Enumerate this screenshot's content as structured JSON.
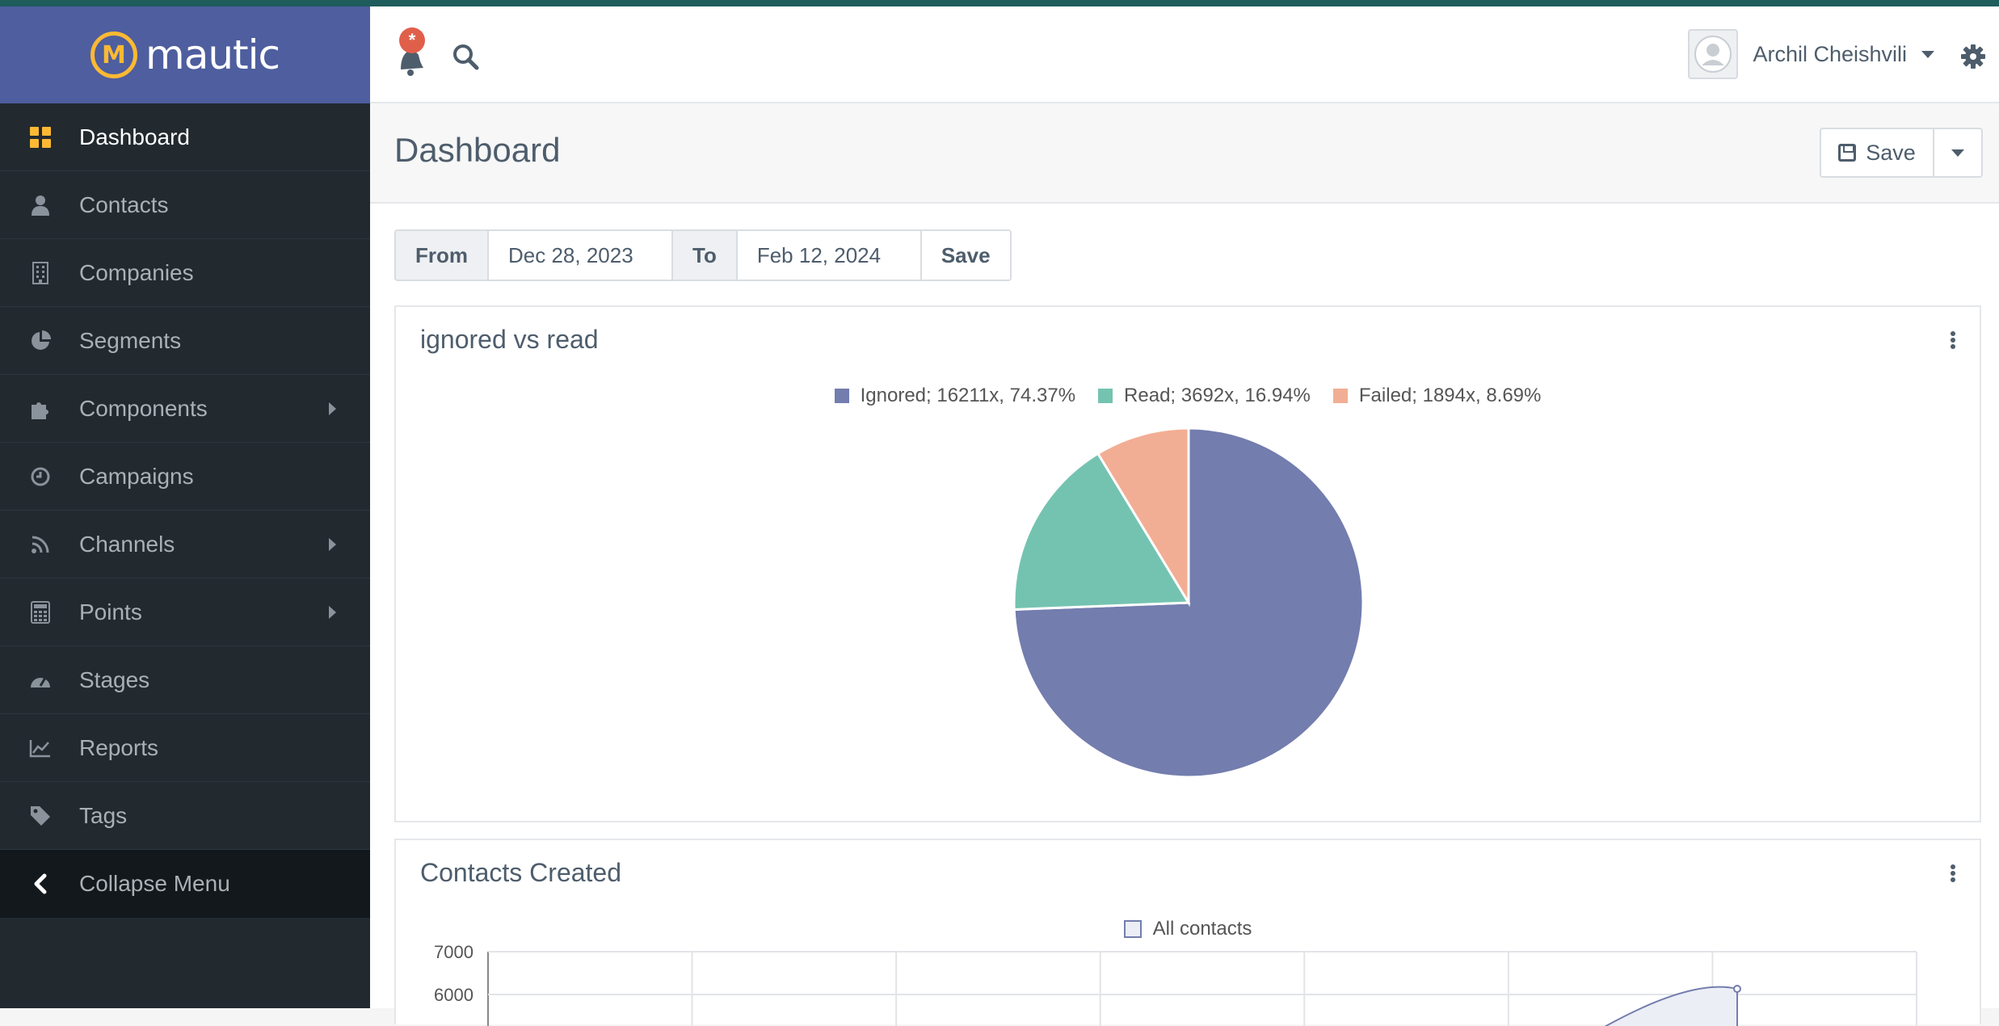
{
  "brand": {
    "name": "mautic",
    "mark": "M"
  },
  "sidebar": {
    "items": [
      {
        "label": "Dashboard",
        "icon": "dashboard-grid-icon",
        "active": true,
        "submenu": false
      },
      {
        "label": "Contacts",
        "icon": "user-icon",
        "active": false,
        "submenu": false
      },
      {
        "label": "Companies",
        "icon": "building-icon",
        "active": false,
        "submenu": false
      },
      {
        "label": "Segments",
        "icon": "pie-chart-icon",
        "active": false,
        "submenu": false
      },
      {
        "label": "Components",
        "icon": "puzzle-icon",
        "active": false,
        "submenu": true
      },
      {
        "label": "Campaigns",
        "icon": "clock-icon",
        "active": false,
        "submenu": false
      },
      {
        "label": "Channels",
        "icon": "rss-icon",
        "active": false,
        "submenu": true
      },
      {
        "label": "Points",
        "icon": "calculator-icon",
        "active": false,
        "submenu": true
      },
      {
        "label": "Stages",
        "icon": "tachometer-icon",
        "active": false,
        "submenu": false
      },
      {
        "label": "Reports",
        "icon": "line-chart-icon",
        "active": false,
        "submenu": false
      },
      {
        "label": "Tags",
        "icon": "tag-icon",
        "active": false,
        "submenu": false
      }
    ],
    "collapse_label": "Collapse Menu"
  },
  "topbar": {
    "notification_badge": "*",
    "user_name": "Archil Cheishvili"
  },
  "header": {
    "title": "Dashboard",
    "save_label": "Save"
  },
  "date_filter": {
    "from_label": "From",
    "from_value": "Dec 28, 2023",
    "to_label": "To",
    "to_value": "Feb 12, 2024",
    "save_label": "Save"
  },
  "colors": {
    "ignored": "#737dae",
    "read": "#74c3b0",
    "failed": "#f2ae94",
    "accent": "#fdb933",
    "brand": "#4e5e9e"
  },
  "widgets": [
    {
      "title": "ignored vs read"
    },
    {
      "title": "Contacts Created"
    }
  ],
  "chart_data": [
    {
      "type": "pie",
      "title": "ignored vs read",
      "legend_position": "top",
      "slices": [
        {
          "label": "Ignored; 16211x, 74.37%",
          "value": 16211,
          "percent": 74.37,
          "color": "#737dae"
        },
        {
          "label": "Read; 3692x, 16.94%",
          "value": 3692,
          "percent": 16.94,
          "color": "#74c3b0"
        },
        {
          "label": "Failed; 1894x, 8.69%",
          "value": 1894,
          "percent": 8.69,
          "color": "#f2ae94"
        }
      ]
    },
    {
      "type": "line",
      "title": "Contacts Created",
      "legend_position": "top",
      "series": [
        {
          "name": "All contacts"
        }
      ],
      "y_ticks": [
        "7000",
        "6000"
      ],
      "ylim": [
        0,
        7000
      ],
      "grid": true
    }
  ]
}
